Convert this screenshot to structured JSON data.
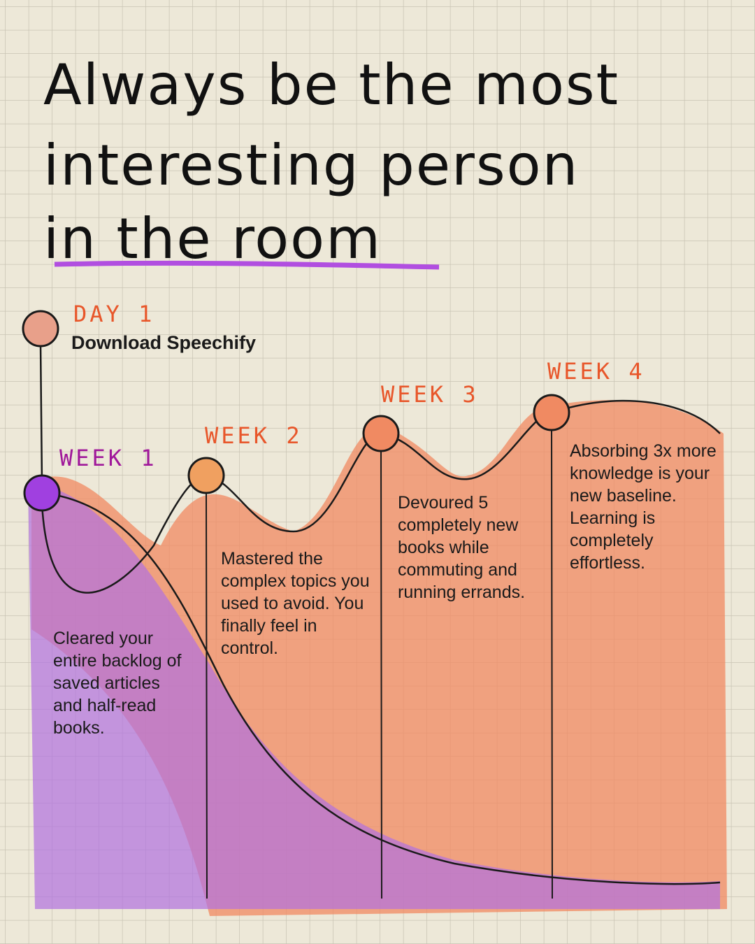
{
  "title_lines": [
    "Always be the most",
    "interesting person",
    "in the room"
  ],
  "day": {
    "label": "DAY 1",
    "text": "Download Speechify"
  },
  "weeks": [
    {
      "label": "WEEK 1",
      "text": "Cleared your entire backlog of saved articles and half-read books."
    },
    {
      "label": "WEEK 2",
      "text": "Mastered the complex topics you used to avoid. You finally feel in control."
    },
    {
      "label": "WEEK 3",
      "text": "Devoured 5 completely new books while commuting and running errands."
    },
    {
      "label": "WEEK 4",
      "text": "Absorbing 3x more knowledge is your new baseline. Learning is completely effortless."
    }
  ]
}
